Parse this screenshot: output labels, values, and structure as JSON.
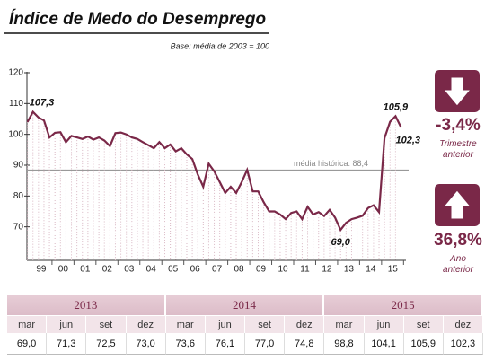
{
  "chart_data": {
    "type": "line",
    "title": "Índice de Medo do Desemprego",
    "subtitle": "Base: média de 2003 = 100",
    "x": [
      1998.875,
      1999.125,
      1999.375,
      1999.625,
      1999.875,
      2000.125,
      2000.375,
      2000.625,
      2000.875,
      2001.125,
      2001.375,
      2001.625,
      2001.875,
      2002.125,
      2002.375,
      2002.625,
      2002.875,
      2003.125,
      2003.375,
      2003.625,
      2003.875,
      2004.125,
      2004.375,
      2004.625,
      2004.875,
      2005.125,
      2005.375,
      2005.625,
      2005.875,
      2006.125,
      2006.375,
      2006.625,
      2006.875,
      2007.125,
      2007.375,
      2007.625,
      2007.875,
      2008.125,
      2008.375,
      2008.625,
      2008.875,
      2009.125,
      2009.375,
      2009.625,
      2009.875,
      2010.125,
      2010.375,
      2010.625,
      2010.875,
      2011.125,
      2011.375,
      2011.625,
      2011.875,
      2012.125,
      2012.375,
      2012.625,
      2012.875,
      2013.125,
      2013.375,
      2013.625,
      2013.875,
      2014.125,
      2014.375,
      2014.625,
      2014.875,
      2015.125,
      2015.375,
      2015.625,
      2015.875
    ],
    "series": [
      {
        "color": "#7a2848",
        "values": [
          104,
          107.3,
          105.5,
          104.5,
          99,
          100.5,
          100.7,
          97.5,
          99.5,
          99,
          98.5,
          99.3,
          98.3,
          99,
          98,
          96.2,
          100.4,
          100.6,
          100,
          99,
          98.5,
          97.5,
          96.5,
          95.5,
          97.5,
          95.5,
          96.7,
          94.5,
          95.5,
          93.5,
          92,
          87,
          83,
          90.5,
          88,
          84.5,
          81,
          83,
          81,
          84.5,
          88.5,
          81.5,
          81.5,
          78,
          75,
          75,
          74,
          72.5,
          74.5,
          75,
          72.5,
          76.5,
          74,
          74.8,
          73.5,
          75.5,
          73,
          69.0,
          71.3,
          72.5,
          73.0,
          73.6,
          76.1,
          77.0,
          74.8,
          98.8,
          104.1,
          105.9,
          102.3
        ],
        "value_labels": [
          null,
          "107,3",
          null,
          null,
          null,
          null,
          null,
          null,
          null,
          null,
          null,
          null,
          null,
          null,
          null,
          null,
          null,
          null,
          null,
          null,
          null,
          null,
          null,
          null,
          null,
          null,
          null,
          null,
          null,
          null,
          null,
          null,
          null,
          null,
          null,
          null,
          null,
          null,
          null,
          null,
          null,
          null,
          null,
          null,
          null,
          null,
          null,
          null,
          null,
          null,
          null,
          null,
          null,
          null,
          null,
          null,
          null,
          "69,0",
          null,
          null,
          null,
          null,
          null,
          null,
          null,
          null,
          null,
          "105,9",
          "102,3"
        ]
      }
    ],
    "xlim": [
      1998.85,
      2016.1
    ],
    "xticks": [
      {
        "value": 1999.5,
        "label": "99"
      },
      {
        "value": 2000.5,
        "label": "00"
      },
      {
        "value": 2001.5,
        "label": "01"
      },
      {
        "value": 2002.5,
        "label": "02"
      },
      {
        "value": 2003.5,
        "label": "03"
      },
      {
        "value": 2004.5,
        "label": "04"
      },
      {
        "value": 2005.5,
        "label": "05"
      },
      {
        "value": 2006.5,
        "label": "06"
      },
      {
        "value": 2007.5,
        "label": "07"
      },
      {
        "value": 2008.5,
        "label": "08"
      },
      {
        "value": 2009.5,
        "label": "09"
      },
      {
        "value": 2010.5,
        "label": "10"
      },
      {
        "value": 2011.5,
        "label": "11"
      },
      {
        "value": 2012.5,
        "label": "12"
      },
      {
        "value": 2013.5,
        "label": "13"
      },
      {
        "value": 2014.5,
        "label": "14"
      },
      {
        "value": 2015.5,
        "label": "15"
      }
    ],
    "ylim": [
      60,
      120
    ],
    "yticks": [
      70,
      80,
      90,
      100,
      110,
      120
    ],
    "reference_line": {
      "value": 88.4,
      "label": "média histórica: 88,4"
    }
  },
  "indicators": [
    {
      "value": "-3,4%",
      "caption": "Trimestre anterior",
      "direction": "down"
    },
    {
      "value": "36,8%",
      "caption": "Ano anterior",
      "direction": "up"
    }
  ],
  "table": {
    "years": [
      "2013",
      "2014",
      "2015"
    ],
    "months": [
      "mar",
      "jun",
      "set",
      "dez",
      "mar",
      "jun",
      "set",
      "dez",
      "mar",
      "jun",
      "set",
      "dez"
    ],
    "values": [
      "69,0",
      "71,3",
      "72,5",
      "73,0",
      "73,6",
      "76,1",
      "77,0",
      "74,8",
      "98,8",
      "104,1",
      "105,9",
      "102,3"
    ]
  }
}
